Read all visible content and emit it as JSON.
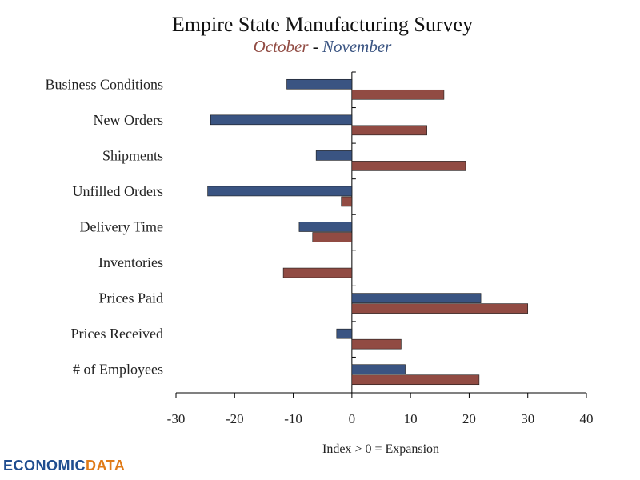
{
  "colors": {
    "october": "#914b43",
    "november": "#3a5482",
    "axis": "#000000",
    "logo_blue": "#1f4d8f",
    "logo_orange": "#e07b18"
  },
  "logo": {
    "part1": "ECONOMIC",
    "part2": "DATA"
  },
  "chart_data": {
    "type": "bar",
    "orientation": "horizontal",
    "title": "Empire State Manufacturing Survey",
    "subtitle": {
      "october": "October",
      "separator": " - ",
      "november": "November"
    },
    "xlabel": "Index > 0 = Expansion",
    "xlim": [
      -30,
      40
    ],
    "xticks": [
      -30,
      -20,
      -10,
      0,
      10,
      20,
      30,
      40
    ],
    "categories": [
      "Business Conditions",
      "New Orders",
      "Shipments",
      "Unfilled Orders",
      "Delivery Time",
      "Inventories",
      "Prices Paid",
      "Prices Received",
      "# of Employees"
    ],
    "series": [
      {
        "name": "November",
        "values": [
          -11.1,
          -24.1,
          -6.1,
          -24.6,
          -9.0,
          0.0,
          22.0,
          -2.6,
          9.1
        ]
      },
      {
        "name": "October",
        "values": [
          15.7,
          12.8,
          19.4,
          -1.8,
          -6.7,
          -11.7,
          30.0,
          8.4,
          21.7
        ]
      }
    ],
    "grid": false,
    "legend": "subtitle"
  }
}
